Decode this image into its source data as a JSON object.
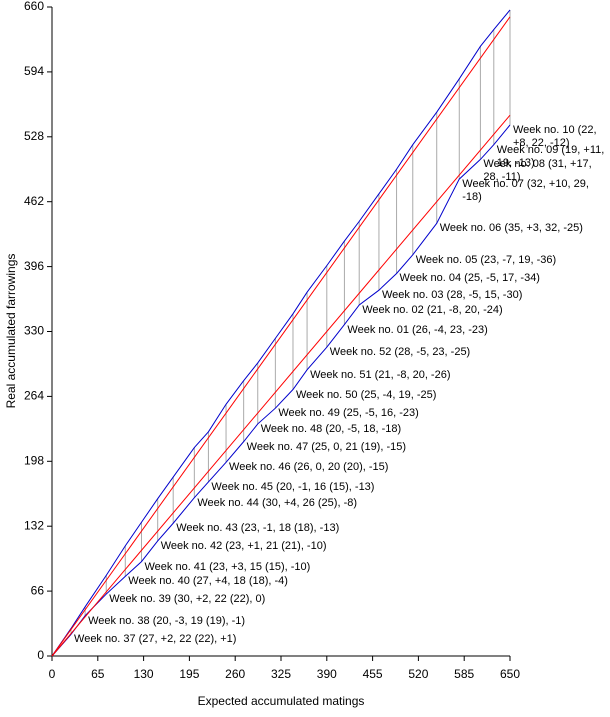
{
  "chart_data": {
    "type": "line",
    "x_label": "Expected accumulated matings",
    "y_label": "Real accumulated farrowings",
    "xlim": [
      0,
      650
    ],
    "ylim": [
      0,
      660
    ],
    "xticks": [
      0,
      65,
      130,
      195,
      260,
      325,
      390,
      455,
      520,
      585,
      650
    ],
    "yticks": [
      0,
      66,
      132,
      198,
      264,
      330,
      396,
      462,
      528,
      594,
      660
    ],
    "drop_lines": true,
    "drop_line_color": "#aaaaaa",
    "series": [
      {
        "color": "#0000cc",
        "x": [
          0,
          27,
          47,
          77,
          104,
          127,
          150,
          172,
          202,
          222,
          247,
          272,
          292,
          317,
          342,
          362,
          390,
          415,
          436,
          464,
          489,
          512,
          546,
          578,
          608,
          627,
          650
        ],
        "values": [
          0,
          28,
          50,
          82,
          112,
          136,
          160,
          182,
          212,
          228,
          256,
          280,
          298,
          323,
          348,
          370,
          397,
          422,
          442,
          470,
          495,
          520,
          553,
          587,
          620,
          637,
          657
        ]
      },
      {
        "color": "#0000cc",
        "x": [
          0,
          27,
          47,
          77,
          104,
          127,
          150,
          172,
          202,
          222,
          247,
          272,
          292,
          317,
          342,
          362,
          390,
          415,
          436,
          464,
          489,
          512,
          546,
          578,
          608,
          627,
          650
        ],
        "values": [
          0,
          22,
          41,
          63,
          81,
          96,
          117,
          135,
          161,
          177,
          197,
          218,
          236,
          252,
          271,
          291,
          314,
          337,
          357,
          372,
          389,
          408,
          440,
          485,
          505,
          520,
          540
        ]
      },
      {
        "color": "#ff0000",
        "x": [
          0,
          650
        ],
        "values": [
          0,
          650
        ]
      },
      {
        "color": "#ff0000",
        "x": [
          0,
          650
        ],
        "values": [
          0,
          550
        ]
      }
    ],
    "annotations": [
      "Week no. 37 (27, +2, 22 (22), +1)",
      "Week no. 38 (20, -3, 19 (19), -1)",
      "Week no. 39 (30, +2, 22 (22), 0)",
      "Week no. 40 (27, +4, 18 (18), -4)",
      "Week no. 41 (23, +3, 15 (15), -10)",
      "Week no. 42 (23, +1, 21 (21), -10)",
      "Week no. 43 (23, -1, 18 (18), -13)",
      "Week no. 44 (30, +4, 26 (25), -8)",
      "Week no. 45 (20, -1, 16 (15), -13)",
      "Week no. 46 (26, 0, 20 (20), -15)",
      "Week no. 47 (25, 0, 21 (19), -15)",
      "Week no. 48 (20, -5, 18, -18)",
      "Week no. 49 (25, -5, 16, -23)",
      "Week no. 50 (25, -4, 19, -25)",
      "Week no. 51 (21, -8, 20, -26)",
      "Week no. 52 (28, -5, 23, -25)",
      "Week no. 01 (26, -4, 23, -23)",
      "Week no. 02 (21, -8, 20, -24)",
      "Week no. 03 (28, -5, 15, -30)",
      "Week no. 04 (25, -5, 17, -34)",
      "Week no. 05 (23, -7, 19, -36)",
      "Week no. 06 (35, +3, 32, -25)",
      "Week no. 07 (32, +10, 29, -18)",
      "Week no. 08 (31, +17, 28, -11)",
      "Week no. 09 (19, +11, 19, -13)",
      "Week no. 10 (22, +8, 22, -12)"
    ]
  }
}
